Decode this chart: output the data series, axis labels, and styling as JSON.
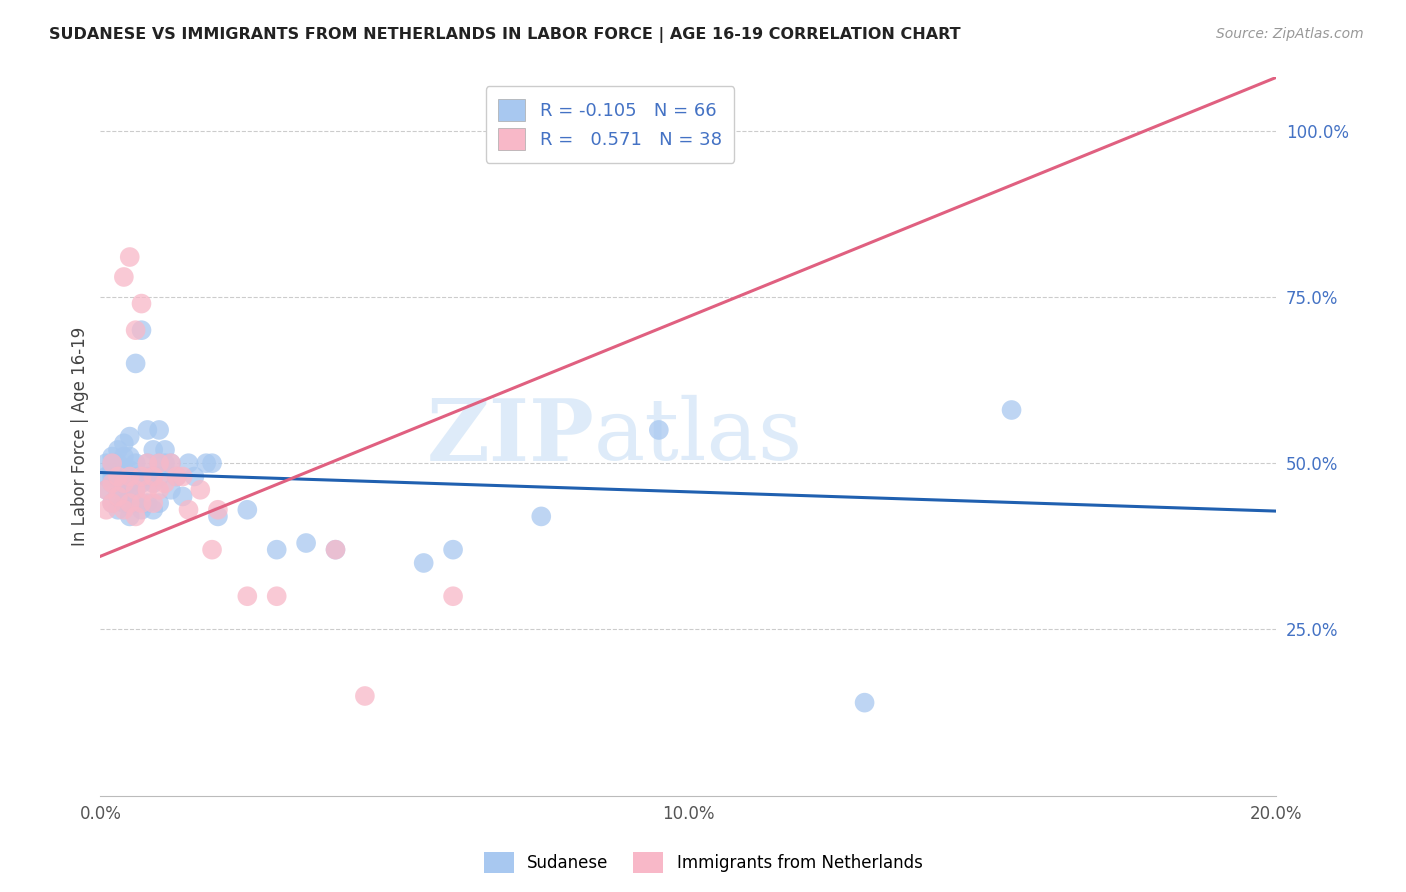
{
  "title": "SUDANESE VS IMMIGRANTS FROM NETHERLANDS IN LABOR FORCE | AGE 16-19 CORRELATION CHART",
  "source": "Source: ZipAtlas.com",
  "ylabel": "In Labor Force | Age 16-19",
  "right_ytick_labels": [
    "25.0%",
    "50.0%",
    "75.0%",
    "100.0%"
  ],
  "right_ytick_values": [
    0.25,
    0.5,
    0.75,
    1.0
  ],
  "xlim": [
    0.0,
    0.2
  ],
  "ylim": [
    0.0,
    1.08
  ],
  "series1_name": "Sudanese",
  "series1_color": "#a8c8f0",
  "series1_R": -0.105,
  "series1_N": 66,
  "series1_line_color": "#2060b0",
  "series2_name": "Immigrants from Netherlands",
  "series2_color": "#f8b8c8",
  "series2_R": 0.571,
  "series2_N": 38,
  "series2_line_color": "#e06080",
  "watermark_left": "ZIP",
  "watermark_right": "atlas",
  "blue_text_color": "#4472c4",
  "sudanese_x": [
    0.001,
    0.001,
    0.001,
    0.002,
    0.002,
    0.002,
    0.002,
    0.002,
    0.002,
    0.003,
    0.003,
    0.003,
    0.003,
    0.003,
    0.004,
    0.004,
    0.004,
    0.004,
    0.004,
    0.004,
    0.005,
    0.005,
    0.005,
    0.005,
    0.005,
    0.005,
    0.006,
    0.006,
    0.006,
    0.006,
    0.006,
    0.007,
    0.007,
    0.007,
    0.008,
    0.008,
    0.008,
    0.008,
    0.009,
    0.009,
    0.009,
    0.01,
    0.01,
    0.01,
    0.01,
    0.011,
    0.011,
    0.012,
    0.012,
    0.013,
    0.014,
    0.015,
    0.016,
    0.018,
    0.019,
    0.02,
    0.025,
    0.03,
    0.035,
    0.04,
    0.055,
    0.06,
    0.075,
    0.095,
    0.13,
    0.155
  ],
  "sudanese_y": [
    0.46,
    0.48,
    0.5,
    0.44,
    0.47,
    0.48,
    0.49,
    0.5,
    0.51,
    0.43,
    0.45,
    0.48,
    0.5,
    0.52,
    0.44,
    0.46,
    0.47,
    0.49,
    0.51,
    0.53,
    0.42,
    0.45,
    0.47,
    0.49,
    0.51,
    0.54,
    0.44,
    0.46,
    0.48,
    0.5,
    0.65,
    0.43,
    0.47,
    0.7,
    0.44,
    0.48,
    0.5,
    0.55,
    0.43,
    0.47,
    0.52,
    0.44,
    0.48,
    0.5,
    0.55,
    0.5,
    0.52,
    0.46,
    0.5,
    0.48,
    0.45,
    0.5,
    0.48,
    0.5,
    0.5,
    0.42,
    0.43,
    0.37,
    0.38,
    0.37,
    0.35,
    0.37,
    0.42,
    0.55,
    0.14,
    0.58
  ],
  "netherlands_x": [
    0.001,
    0.001,
    0.002,
    0.002,
    0.002,
    0.003,
    0.003,
    0.004,
    0.004,
    0.004,
    0.005,
    0.005,
    0.005,
    0.006,
    0.006,
    0.006,
    0.007,
    0.007,
    0.007,
    0.008,
    0.008,
    0.009,
    0.009,
    0.01,
    0.01,
    0.011,
    0.012,
    0.013,
    0.014,
    0.015,
    0.017,
    0.019,
    0.02,
    0.025,
    0.03,
    0.04,
    0.045,
    0.06
  ],
  "netherlands_y": [
    0.43,
    0.46,
    0.44,
    0.47,
    0.5,
    0.45,
    0.48,
    0.43,
    0.47,
    0.78,
    0.44,
    0.48,
    0.81,
    0.42,
    0.46,
    0.7,
    0.44,
    0.48,
    0.74,
    0.46,
    0.5,
    0.44,
    0.48,
    0.46,
    0.5,
    0.47,
    0.5,
    0.48,
    0.48,
    0.43,
    0.46,
    0.37,
    0.43,
    0.3,
    0.3,
    0.37,
    0.15,
    0.3
  ],
  "blue_trend_x0": 0.0,
  "blue_trend_x1": 0.2,
  "blue_trend_y0": 0.486,
  "blue_trend_y1": 0.428,
  "pink_trend_x0": 0.0,
  "pink_trend_x1": 0.2,
  "pink_trend_y0": 0.36,
  "pink_trend_y1": 1.08
}
